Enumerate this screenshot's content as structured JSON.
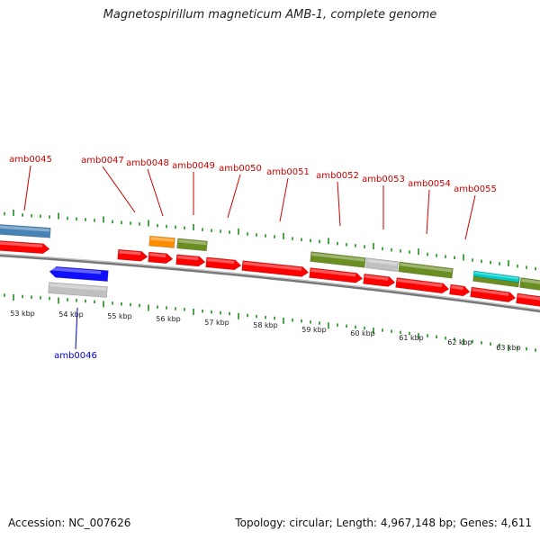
{
  "title": "Magnetospirillum magneticum AMB-1, complete genome",
  "footer": {
    "accession": "Accession: NC_007626",
    "stats": "Topology: circular; Length: 4,967,148 bp; Genes: 4,611"
  },
  "colors": {
    "forward_cds": "#ff0000",
    "reverse_cds": "#1010ff",
    "forward_label": "#cc0000",
    "reverse_label": "#0000cc",
    "backbone": "#777777",
    "ticks": "#228b22",
    "olive": "#6b8e23",
    "grey": "#c0c0c0",
    "orange": "#ff8c00",
    "steelblue": "#4682b4",
    "cyan": "#00cccc"
  },
  "kbp_labels": [
    "53 kbp",
    "54 kbp",
    "55 kbp",
    "56 kbp",
    "57 kbp",
    "58 kbp",
    "59 kbp",
    "60 kbp",
    "61 kbp",
    "62 kbp",
    "63 kbp"
  ],
  "gene_labels_top": [
    "amb0045",
    "amb0047",
    "amb0048",
    "amb0049",
    "amb0050",
    "amb0051",
    "amb0052",
    "amb0053",
    "amb0054",
    "amb0055"
  ],
  "gene_labels_bottom": [
    "amb0046"
  ]
}
